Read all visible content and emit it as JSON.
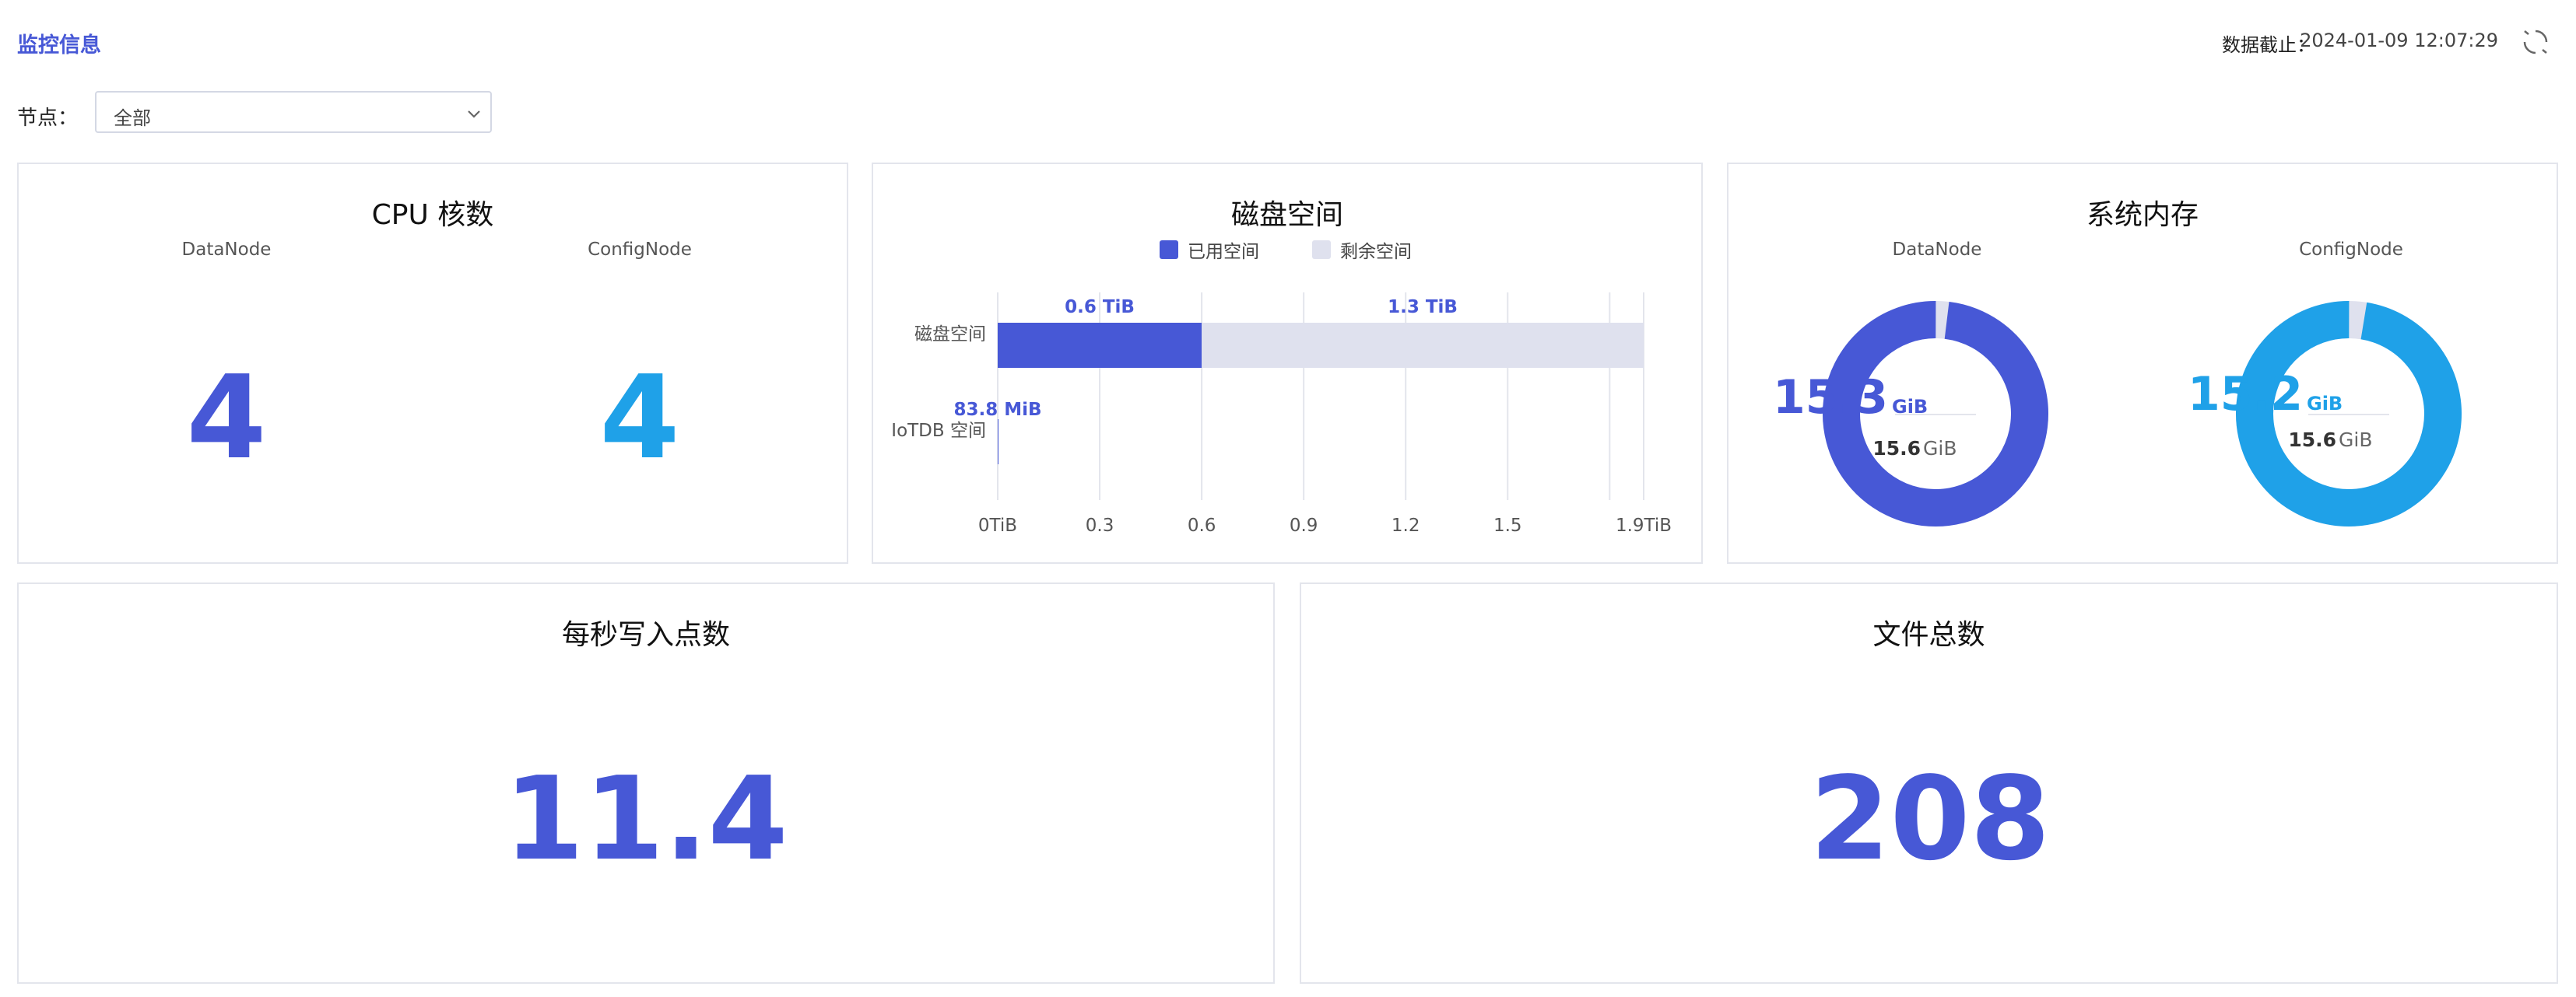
{
  "header": {
    "title": "监控信息",
    "timestamp_label": "数据截止：",
    "timestamp": "2024-01-09 12:07:29",
    "refresh_icon": "refresh-icon"
  },
  "filter": {
    "node_label": "节点：",
    "node_value": "全部",
    "chevron_icon": "chevron-down-icon"
  },
  "colors": {
    "primary": "#4758d6",
    "secondary": "#1fa1e8",
    "remaining": "#dfe1ee",
    "grid": "#e3e5ec"
  },
  "cpu": {
    "title": "CPU 核数",
    "datanode_label": "DataNode",
    "datanode_value": "4",
    "confignode_label": "ConfigNode",
    "confignode_value": "4"
  },
  "disk": {
    "title": "磁盘空间",
    "legend_used": "已用空间",
    "legend_free": "剩余空间"
  },
  "memory": {
    "title": "系统内存",
    "datanode_label": "DataNode",
    "datanode_used": "15.3",
    "datanode_used_unit": "GiB",
    "datanode_total": "15.6",
    "datanode_total_unit": "GiB",
    "confignode_label": "ConfigNode",
    "confignode_used": "15.2",
    "confignode_used_unit": "GiB",
    "confignode_total": "15.6",
    "confignode_total_unit": "GiB"
  },
  "writes": {
    "title": "每秒写入点数",
    "value": "11.4"
  },
  "files": {
    "title": "文件总数",
    "value": "208"
  },
  "chart_data": [
    {
      "type": "bar",
      "orientation": "horizontal",
      "stacked": true,
      "title": "磁盘空间",
      "categories": [
        "磁盘空间",
        "IoTDB 空间"
      ],
      "series": [
        {
          "name": "已用空间",
          "values": [
            0.6,
            8e-05
          ],
          "labels": [
            "0.6 TiB",
            "83.8 MiB"
          ],
          "color": "#4758d6"
        },
        {
          "name": "剩余空间",
          "values": [
            1.3,
            null
          ],
          "labels": [
            "1.3 TiB",
            ""
          ],
          "color": "#dfe1ee"
        }
      ],
      "x_ticks": [
        "0TiB",
        "0.3",
        "0.6",
        "0.9",
        "1.2",
        "1.5",
        "1.9TiB"
      ],
      "xlim": [
        0,
        1.9
      ],
      "legend": "top-center",
      "grid": true
    },
    {
      "type": "pie",
      "variant": "donut",
      "title": "DataNode",
      "values": [
        15.3,
        0.3
      ],
      "labels": [
        "used",
        "free"
      ],
      "total": 15.6,
      "unit": "GiB",
      "colors": [
        "#4758d6",
        "#dfe1ee"
      ]
    },
    {
      "type": "pie",
      "variant": "donut",
      "title": "ConfigNode",
      "values": [
        15.2,
        0.4
      ],
      "labels": [
        "used",
        "free"
      ],
      "total": 15.6,
      "unit": "GiB",
      "colors": [
        "#1fa1e8",
        "#dfe1ee"
      ]
    }
  ]
}
